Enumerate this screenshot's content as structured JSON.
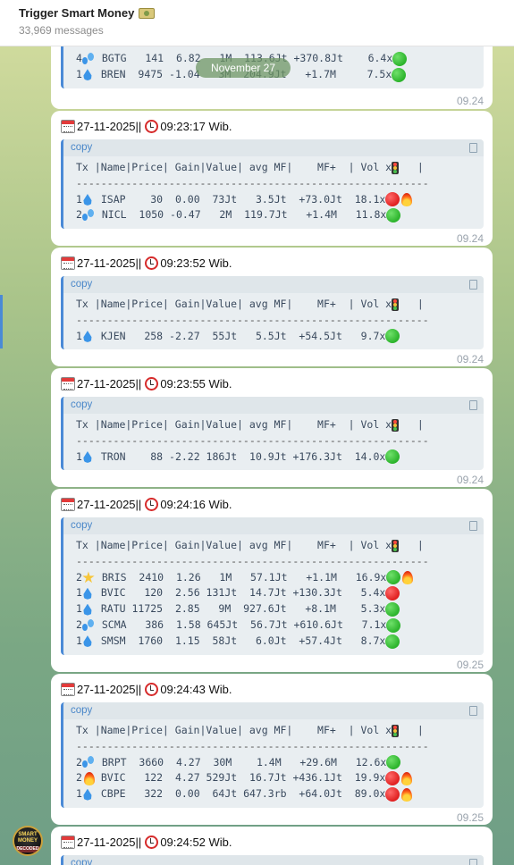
{
  "header": {
    "title": "Trigger Smart Money",
    "title_icon": "money-icon",
    "subtitle": "33,969 messages"
  },
  "date_chip": "November 27",
  "avatar": {
    "line1": "SMART",
    "line2": "MONEY",
    "line3": "DECODED"
  },
  "table_header": "Tx |Name|Price| Gain|Value| avg MF|    MF+  | Vol x",
  "separator": "---------------------------------------------------------",
  "copy_label": "copy",
  "colors": {
    "accent": "#4a8ad6",
    "green": "#2bb32b",
    "red": "#e01f1f"
  },
  "top_partial": {
    "rows": [
      {
        "tx": "4",
        "icon": "splash",
        "text": " BGTG   141  6.82   1M  113.6Jt +370.8Jt    6.4x",
        "status": "green"
      },
      {
        "tx": "1",
        "icon": "drop",
        "text": " BREN  9475 -1.04   3M  204.9Jt   +1.7M     7.5x",
        "status": "green"
      }
    ],
    "time": "09.24"
  },
  "messages": [
    {
      "date": "27-11-2025",
      "sep": " || ",
      "clock": "09:23:17 Wib.",
      "rows": [
        {
          "tx": "1",
          "icon": "drop",
          "text": " ISAP    30  0.00  73Jt   3.5Jt  +73.0Jt  18.1x",
          "status": "red",
          "fire": true
        },
        {
          "tx": "2",
          "icon": "splash",
          "text": " NICL  1050 -0.47   2M  119.7Jt   +1.4M   11.8x",
          "status": "green"
        }
      ],
      "time": "09.24"
    },
    {
      "date": "27-11-2025",
      "sep": " || ",
      "clock": "09:23:52 Wib.",
      "rows": [
        {
          "tx": "1",
          "icon": "drop",
          "text": " KJEN   258 -2.27  55Jt   5.5Jt  +54.5Jt   9.7x",
          "status": "green"
        }
      ],
      "time": "09.24"
    },
    {
      "date": "27-11-2025",
      "sep": " || ",
      "clock": "09:23:55 Wib.",
      "rows": [
        {
          "tx": "1",
          "icon": "drop",
          "text": " TRON    88 -2.22 186Jt  10.9Jt +176.3Jt  14.0x",
          "status": "green"
        }
      ],
      "time": "09.24"
    },
    {
      "date": "27-11-2025",
      "sep": " || ",
      "clock": "09:24:16 Wib.",
      "rows": [
        {
          "tx": "2",
          "icon": "burst",
          "text": " BRIS  2410  1.26   1M   57.1Jt   +1.1M   16.9x",
          "status": "green",
          "fire": true
        },
        {
          "tx": "1",
          "icon": "drop",
          "text": " BVIC   120  2.56 131Jt  14.7Jt +130.3Jt   5.4x",
          "status": "red"
        },
        {
          "tx": "1",
          "icon": "drop",
          "text": " RATU 11725  2.85   9M  927.6Jt   +8.1M    5.3x",
          "status": "green"
        },
        {
          "tx": "2",
          "icon": "splash",
          "text": " SCMA   386  1.58 645Jt  56.7Jt +610.6Jt   7.1x",
          "status": "green"
        },
        {
          "tx": "1",
          "icon": "drop",
          "text": " SMSM  1760  1.15  58Jt   6.0Jt  +57.4Jt   8.7x",
          "status": "green"
        }
      ],
      "time": "09.25"
    },
    {
      "date": "27-11-2025",
      "sep": " || ",
      "clock": "09:24:43 Wib.",
      "rows": [
        {
          "tx": "2",
          "icon": "splash",
          "text": " BRPT  3660  4.27  30M    1.4M   +29.6M   12.6x",
          "status": "green"
        },
        {
          "tx": "2",
          "icon": "fire",
          "text": " BVIC   122  4.27 529Jt  16.7Jt +436.1Jt  19.9x",
          "status": "red",
          "fire": true
        },
        {
          "tx": "1",
          "icon": "drop",
          "text": " CBPE   322  0.00  64Jt 647.3rb  +64.0Jt  89.0x",
          "status": "red",
          "fire": true
        }
      ],
      "time": "09.25"
    },
    {
      "date": "27-11-2025",
      "sep": " || ",
      "clock": "09:24:52 Wib.",
      "rows": [],
      "time": ""
    }
  ]
}
